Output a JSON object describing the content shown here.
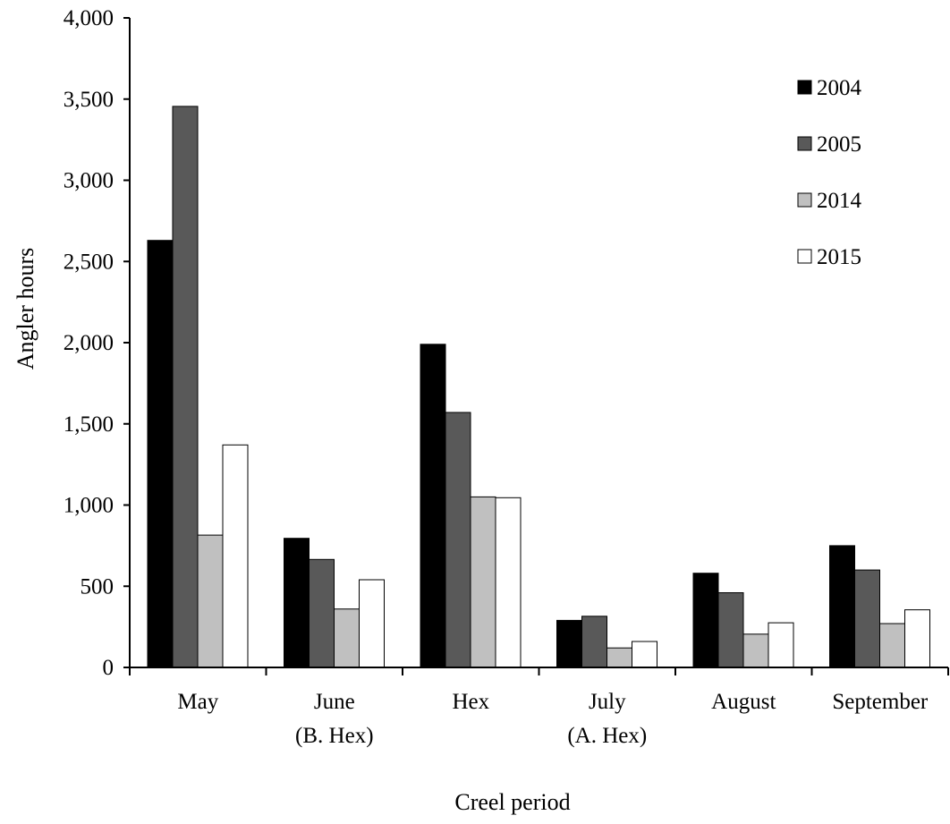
{
  "chart_data": {
    "type": "bar",
    "title": "",
    "xlabel": "Creel period",
    "ylabel": "Angler hours",
    "ylim": [
      0,
      4000
    ],
    "y_ticks": [
      0,
      500,
      1000,
      1500,
      2000,
      2500,
      3000,
      3500,
      4000
    ],
    "y_tick_labels": [
      "0",
      "500",
      "1,000",
      "1,500",
      "2,000",
      "2,500",
      "3,000",
      "3,500",
      "4,000"
    ],
    "categories": [
      [
        "May"
      ],
      [
        "June",
        "(B. Hex)"
      ],
      [
        "Hex"
      ],
      [
        "July",
        "(A. Hex)"
      ],
      [
        "August"
      ],
      [
        "September"
      ]
    ],
    "series": [
      {
        "name": "2004",
        "color": "#000000",
        "values": [
          2630,
          795,
          1990,
          290,
          580,
          750
        ]
      },
      {
        "name": "2005",
        "color": "#595959",
        "values": [
          3455,
          665,
          1570,
          315,
          460,
          600
        ]
      },
      {
        "name": "2014",
        "color": "#c0c0c0",
        "values": [
          815,
          360,
          1050,
          120,
          205,
          270
        ]
      },
      {
        "name": "2015",
        "color": "#ffffff",
        "values": [
          1370,
          540,
          1045,
          160,
          275,
          355
        ]
      }
    ],
    "grid": false,
    "legend_position": "top-right"
  }
}
